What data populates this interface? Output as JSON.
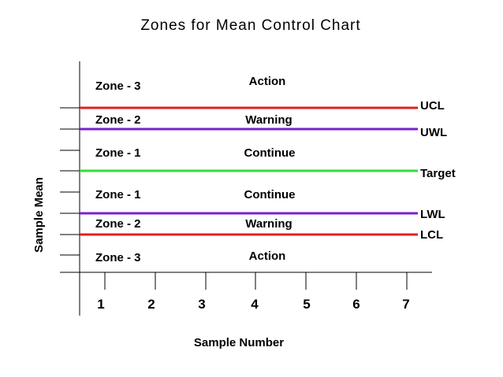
{
  "chart_data": {
    "type": "control-chart-diagram",
    "title": "Zones for Mean Control Chart",
    "xlabel": "Sample Number",
    "ylabel": "Sample Mean",
    "x_ticks": [
      "1",
      "2",
      "3",
      "4",
      "5",
      "6",
      "7"
    ],
    "control_lines": [
      {
        "name": "UCL",
        "color": "#e02020"
      },
      {
        "name": "UWL",
        "color": "#7a22c8"
      },
      {
        "name": "Target",
        "color": "#33dd33"
      },
      {
        "name": "LWL",
        "color": "#7a22c8"
      },
      {
        "name": "LCL",
        "color": "#e02020"
      }
    ],
    "zones": [
      {
        "zone": "Zone - 3",
        "action": "Action"
      },
      {
        "zone": "Zone - 2",
        "action": "Warning"
      },
      {
        "zone": "Zone - 1",
        "action": "Continue"
      },
      {
        "zone": "Zone - 1",
        "action": "Continue"
      },
      {
        "zone": "Zone - 2",
        "action": "Warning"
      },
      {
        "zone": "Zone - 3",
        "action": "Action"
      }
    ]
  }
}
